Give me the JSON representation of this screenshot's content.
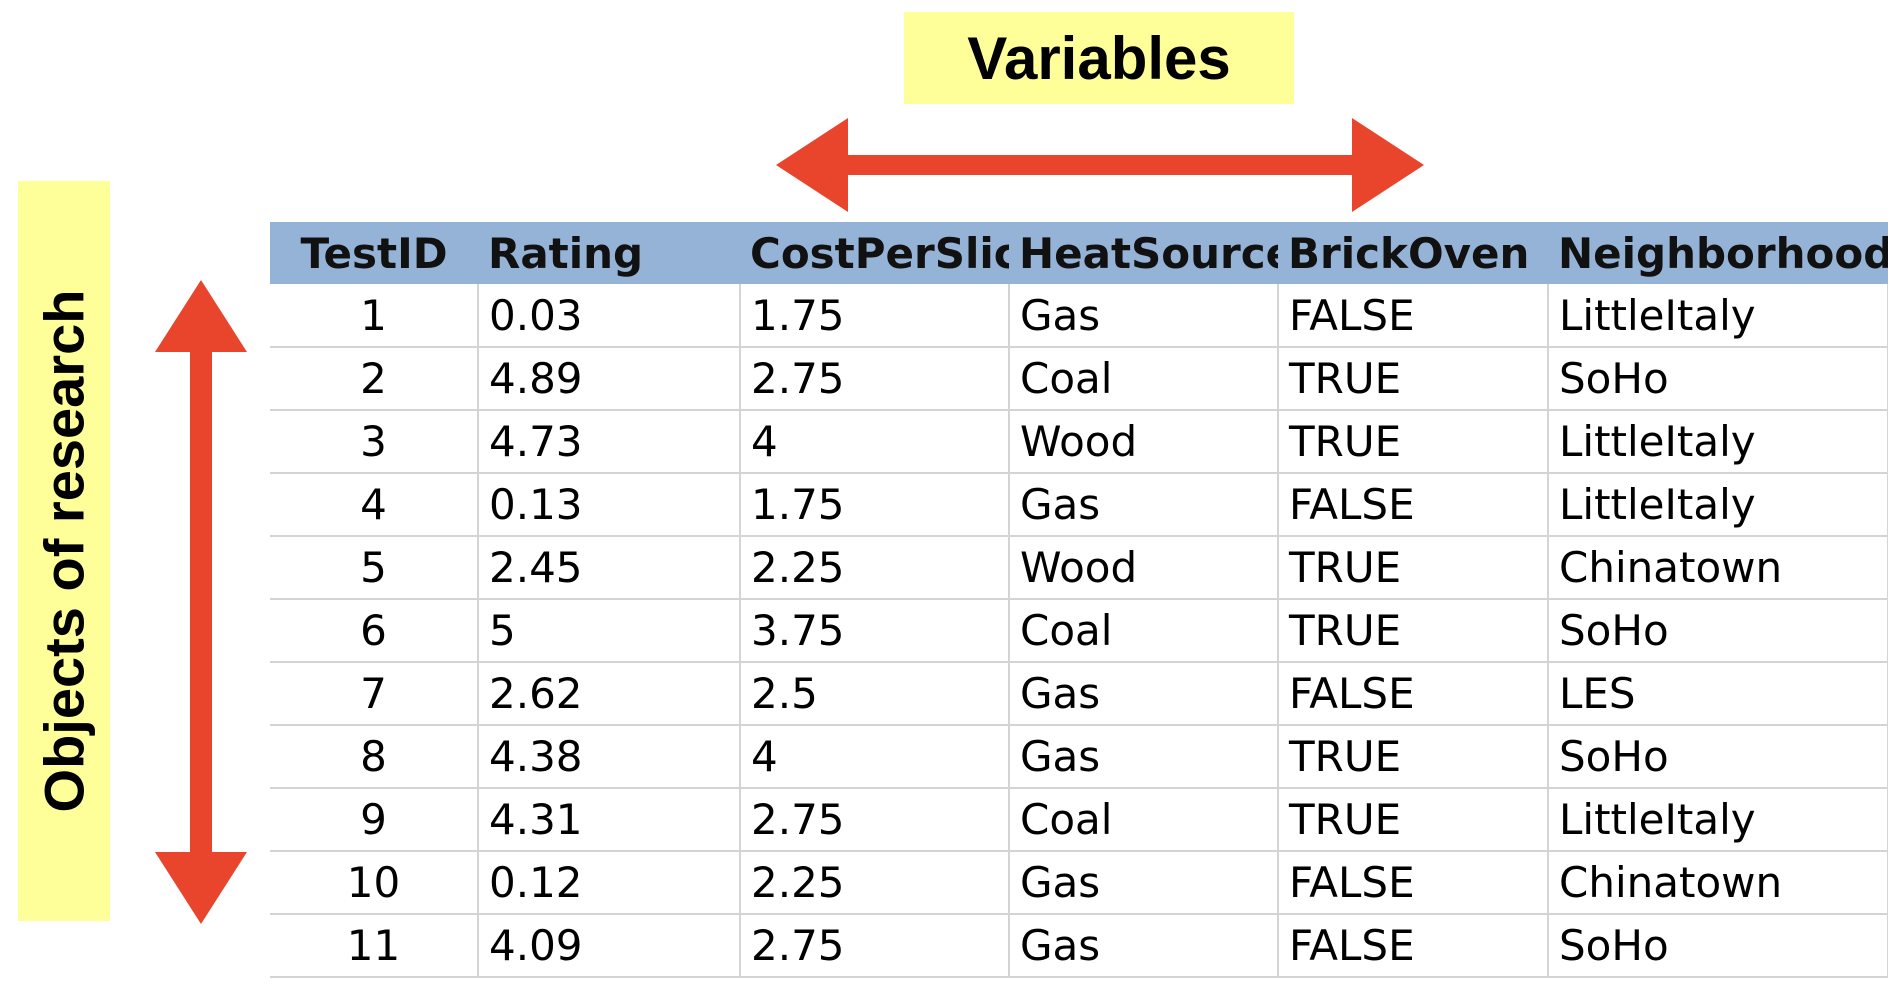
{
  "labels": {
    "variables": "Variables",
    "objects": "Objects of research"
  },
  "colors": {
    "arrow": "#e8452c",
    "label_bg": "#ffff99",
    "header_bg": "#95b3d7"
  },
  "table": {
    "columns": [
      "TestID",
      "Rating",
      "CostPerSlice",
      "HeatSource",
      "BrickOven",
      "Neighborhood"
    ],
    "rows": [
      [
        "1",
        "0.03",
        "1.75",
        "Gas",
        "FALSE",
        "LittleItaly"
      ],
      [
        "2",
        "4.89",
        "2.75",
        "Coal",
        "TRUE",
        "SoHo"
      ],
      [
        "3",
        "4.73",
        "4",
        "Wood",
        "TRUE",
        "LittleItaly"
      ],
      [
        "4",
        "0.13",
        "1.75",
        "Gas",
        "FALSE",
        "LittleItaly"
      ],
      [
        "5",
        "2.45",
        "2.25",
        "Wood",
        "TRUE",
        "Chinatown"
      ],
      [
        "6",
        "5",
        "3.75",
        "Coal",
        "TRUE",
        "SoHo"
      ],
      [
        "7",
        "2.62",
        "2.5",
        "Gas",
        "FALSE",
        "LES"
      ],
      [
        "8",
        "4.38",
        "4",
        "Gas",
        "TRUE",
        "SoHo"
      ],
      [
        "9",
        "4.31",
        "2.75",
        "Coal",
        "TRUE",
        "LittleItaly"
      ],
      [
        "10",
        "0.12",
        "2.25",
        "Gas",
        "FALSE",
        "Chinatown"
      ],
      [
        "11",
        "4.09",
        "2.75",
        "Gas",
        "FALSE",
        "SoHo"
      ]
    ]
  }
}
